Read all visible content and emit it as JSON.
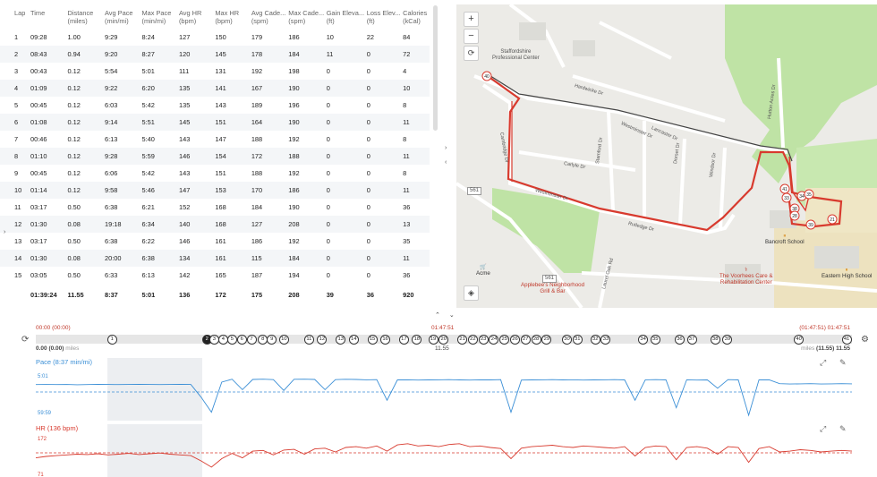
{
  "laps": {
    "columns": [
      "Lap",
      "Time",
      "Distance\n(miles)",
      "Avg Pace\n(min/mi)",
      "Max Pace\n(min/mi)",
      "Avg HR\n(bpm)",
      "Max HR\n(bpm)",
      "Avg Cade...\n(spm)",
      "Max Cade...\n(spm)",
      "Gain Eleva...\n(ft)",
      "Loss Elev...\n(ft)",
      "Calories\n(kCal)"
    ],
    "rows": [
      [
        "1",
        "09:28",
        "1.00",
        "9:29",
        "8:24",
        "127",
        "150",
        "179",
        "186",
        "10",
        "22",
        "84"
      ],
      [
        "2",
        "08:43",
        "0.94",
        "9:20",
        "8:27",
        "120",
        "145",
        "178",
        "184",
        "11",
        "0",
        "72"
      ],
      [
        "3",
        "00:43",
        "0.12",
        "5:54",
        "5:01",
        "111",
        "131",
        "192",
        "198",
        "0",
        "0",
        "4"
      ],
      [
        "4",
        "01:09",
        "0.12",
        "9:22",
        "6:20",
        "135",
        "141",
        "167",
        "190",
        "0",
        "0",
        "10"
      ],
      [
        "5",
        "00:45",
        "0.12",
        "6:03",
        "5:42",
        "135",
        "143",
        "189",
        "196",
        "0",
        "0",
        "8"
      ],
      [
        "6",
        "01:08",
        "0.12",
        "9:14",
        "5:51",
        "145",
        "151",
        "164",
        "190",
        "0",
        "0",
        "11"
      ],
      [
        "7",
        "00:46",
        "0.12",
        "6:13",
        "5:40",
        "143",
        "147",
        "188",
        "192",
        "0",
        "0",
        "8"
      ],
      [
        "8",
        "01:10",
        "0.12",
        "9:28",
        "5:59",
        "146",
        "154",
        "172",
        "188",
        "0",
        "0",
        "11"
      ],
      [
        "9",
        "00:45",
        "0.12",
        "6:06",
        "5:42",
        "143",
        "151",
        "188",
        "192",
        "0",
        "0",
        "8"
      ],
      [
        "10",
        "01:14",
        "0.12",
        "9:58",
        "5:46",
        "147",
        "153",
        "170",
        "186",
        "0",
        "0",
        "11"
      ],
      [
        "11",
        "03:17",
        "0.50",
        "6:38",
        "6:21",
        "152",
        "168",
        "184",
        "190",
        "0",
        "0",
        "36"
      ],
      [
        "12",
        "01:30",
        "0.08",
        "19:18",
        "6:34",
        "140",
        "168",
        "127",
        "208",
        "0",
        "0",
        "13"
      ],
      [
        "13",
        "03:17",
        "0.50",
        "6:38",
        "6:22",
        "146",
        "161",
        "186",
        "192",
        "0",
        "0",
        "35"
      ],
      [
        "14",
        "01:30",
        "0.08",
        "20:00",
        "6:38",
        "134",
        "161",
        "115",
        "184",
        "0",
        "0",
        "11"
      ],
      [
        "15",
        "03:05",
        "0.50",
        "6:33",
        "6:13",
        "142",
        "165",
        "187",
        "194",
        "0",
        "0",
        "36"
      ]
    ],
    "total": [
      "",
      "01:39:24",
      "11.55",
      "8:37",
      "5:01",
      "136",
      "172",
      "175",
      "208",
      "39",
      "36",
      "920"
    ]
  },
  "map": {
    "zoom_in": "+",
    "zoom_out": "−",
    "reset": "⟳",
    "layers_icon": "layers-icon",
    "labels": {
      "staffordshire": "Staffordshire\nProfessional Center",
      "bancroft": "Bancroft School",
      "eastern": "Eastern High School",
      "voorhees": "The Voorhees Care &\nRehabilitation Center",
      "applebees": "Applebee's Neighborhood\nGrill & Bar",
      "acme": "Acme",
      "route561a": "561",
      "route561b": "561"
    },
    "streets": {
      "hardwicke": "Hardwicke Dr",
      "westminster1": "Westminster Dr",
      "westminster2": "Westminster Dr",
      "cambridge": "Cambridge Dr",
      "carlyle": "Carlyle Dr",
      "stamford": "Stamford Dr",
      "lancaster": "Lancaster Dr",
      "dorset": "Dorset Dr",
      "windsor": "Windsor Dr",
      "hutton": "Hutton Acres Dr",
      "rutledge": "Rutledge Dr",
      "laurel": "Laurel Oak Rd"
    },
    "markers": [
      "40",
      "41",
      "34",
      "35",
      "21",
      "39",
      "38",
      "28",
      "33"
    ]
  },
  "timeline": {
    "start_red": "00:00 (00:00)",
    "start": "0.00 (0.00)",
    "start_unit": "miles",
    "mid_red": "01:47:51",
    "mid": "11.55",
    "end_red": "(01:47:51) 01:47:51",
    "end": "(11.55) 11.55",
    "end_unit": "miles",
    "markers": [
      {
        "label": "1",
        "pos": 0.088,
        "active": false
      },
      {
        "label": "2",
        "pos": 0.205,
        "active": true
      },
      {
        "label": "3",
        "pos": 0.214,
        "active": false
      },
      {
        "label": "4",
        "pos": 0.225,
        "active": false
      },
      {
        "label": "5",
        "pos": 0.236,
        "active": false
      },
      {
        "label": "6",
        "pos": 0.248,
        "active": false
      },
      {
        "label": "7",
        "pos": 0.26,
        "active": false
      },
      {
        "label": "8",
        "pos": 0.274,
        "active": false
      },
      {
        "label": "9",
        "pos": 0.285,
        "active": false
      },
      {
        "label": "10",
        "pos": 0.3,
        "active": false
      },
      {
        "label": "11",
        "pos": 0.331,
        "active": false
      },
      {
        "label": "12",
        "pos": 0.347,
        "active": false
      },
      {
        "label": "13",
        "pos": 0.37,
        "active": false
      },
      {
        "label": "14",
        "pos": 0.386,
        "active": false
      },
      {
        "label": "15",
        "pos": 0.409,
        "active": false
      },
      {
        "label": "16",
        "pos": 0.425,
        "active": false
      },
      {
        "label": "17",
        "pos": 0.448,
        "active": false
      },
      {
        "label": "18",
        "pos": 0.464,
        "active": false
      },
      {
        "label": "19",
        "pos": 0.484,
        "active": false
      },
      {
        "label": "20",
        "pos": 0.497,
        "active": false
      },
      {
        "label": "21",
        "pos": 0.52,
        "active": false
      },
      {
        "label": "22",
        "pos": 0.533,
        "active": false
      },
      {
        "label": "23",
        "pos": 0.546,
        "active": false
      },
      {
        "label": "24",
        "pos": 0.559,
        "active": false
      },
      {
        "label": "25",
        "pos": 0.572,
        "active": false
      },
      {
        "label": "26",
        "pos": 0.585,
        "active": false
      },
      {
        "label": "27",
        "pos": 0.598,
        "active": false
      },
      {
        "label": "28",
        "pos": 0.611,
        "active": false
      },
      {
        "label": "29",
        "pos": 0.624,
        "active": false
      },
      {
        "label": "30",
        "pos": 0.649,
        "active": false
      },
      {
        "label": "31",
        "pos": 0.662,
        "active": false
      },
      {
        "label": "32",
        "pos": 0.684,
        "active": false
      },
      {
        "label": "33",
        "pos": 0.697,
        "active": false
      },
      {
        "label": "34",
        "pos": 0.743,
        "active": false
      },
      {
        "label": "35",
        "pos": 0.758,
        "active": false
      },
      {
        "label": "36",
        "pos": 0.788,
        "active": false
      },
      {
        "label": "37",
        "pos": 0.803,
        "active": false
      },
      {
        "label": "38",
        "pos": 0.832,
        "active": false
      },
      {
        "label": "39",
        "pos": 0.847,
        "active": false
      },
      {
        "label": "40",
        "pos": 0.935,
        "active": false
      },
      {
        "label": "41",
        "pos": 0.994,
        "active": false
      }
    ]
  },
  "charts": {
    "pace": {
      "title": "Pace (8:37 min/mi)",
      "ymax": "5:01",
      "ymin": "59:59",
      "color": "#3b8fd6"
    },
    "hr": {
      "title": "HR (136 bpm)",
      "ymax": "172",
      "ymin": "71",
      "color": "#d83a2e"
    }
  },
  "chart_data": [
    {
      "type": "line",
      "title": "Pace (8:37 min/mi)",
      "series": [
        {
          "name": "Pace",
          "values": [
            9.6,
            9.5,
            9.6,
            9.5,
            9.7,
            9.6,
            9.4,
            9.5,
            9.6,
            9.5,
            9.4,
            9.5,
            9.6,
            9.5,
            9.4,
            9.5,
            18.0,
            28.0,
            8.0,
            6.0,
            13.0,
            6.2,
            6.0,
            6.3,
            13.5,
            6.1,
            6.0,
            6.2,
            13.0,
            6.3,
            6.1,
            6.2,
            6.4,
            6.3,
            20.0,
            6.5,
            6.4,
            6.6,
            6.5,
            6.4,
            6.3,
            6.5,
            6.6,
            6.4,
            6.5,
            6.3,
            28.0,
            6.6,
            6.5,
            6.4,
            6.3,
            6.5,
            6.4,
            6.6,
            6.5,
            6.4,
            6.3,
            6.5,
            20.0,
            6.4,
            6.3,
            6.5,
            25.0,
            6.4,
            6.6,
            6.5,
            12.0,
            6.3,
            6.5,
            30.0,
            6.4,
            6.5,
            9.0,
            9.2,
            9.1,
            9.0,
            9.2,
            9.1,
            9.0,
            9.1
          ]
        }
      ]
    },
    {
      "type": "line",
      "title": "HR (136 bpm)",
      "series": [
        {
          "name": "HR",
          "values": [
            120,
            124,
            126,
            128,
            130,
            129,
            131,
            128,
            130,
            132,
            129,
            131,
            133,
            130,
            128,
            126,
            112,
            95,
            118,
            132,
            120,
            138,
            140,
            128,
            141,
            143,
            130,
            144,
            146,
            136,
            148,
            150,
            146,
            152,
            138,
            155,
            158,
            152,
            154,
            150,
            156,
            158,
            150,
            152,
            148,
            145,
            118,
            146,
            150,
            152,
            154,
            150,
            148,
            152,
            150,
            148,
            146,
            150,
            125,
            148,
            152,
            150,
            115,
            148,
            150,
            146,
            130,
            150,
            148,
            108,
            145,
            150,
            136,
            138,
            142,
            140,
            136,
            138,
            140,
            138
          ]
        }
      ]
    }
  ]
}
